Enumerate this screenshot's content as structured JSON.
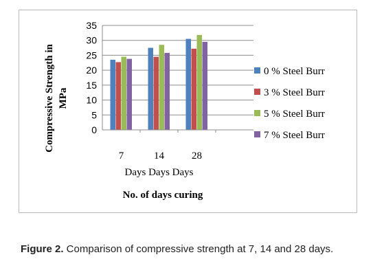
{
  "chart_data": {
    "type": "bar",
    "categories": [
      "7",
      "14",
      "28"
    ],
    "category_sublabel": "Days Days Days",
    "series": [
      {
        "name": "0 % Steel Burr",
        "values": [
          23.5,
          27.5,
          30.5
        ],
        "color": "#4f81bd"
      },
      {
        "name": "3 % Steel Burr",
        "values": [
          22.7,
          24.5,
          27.2
        ],
        "color": "#c0504d"
      },
      {
        "name": "5 % Steel Burr",
        "values": [
          24.5,
          28.5,
          31.8
        ],
        "color": "#9bbb59"
      },
      {
        "name": "7 % Steel Burr",
        "values": [
          23.8,
          25.8,
          29.5
        ],
        "color": "#8064a2"
      }
    ],
    "yticks": [
      0,
      5,
      10,
      15,
      20,
      25,
      30,
      35
    ],
    "ylim": [
      0,
      35
    ],
    "ylabel_line1": "Compressive Strength in",
    "ylabel_line2": "MPa",
    "xlabel": "No. of days curing",
    "grid": "horizontal",
    "legend_position": "right"
  },
  "caption": {
    "label": "Figure 2.",
    "text": " Comparison of compressive strength at 7, 14 and 28 days."
  }
}
